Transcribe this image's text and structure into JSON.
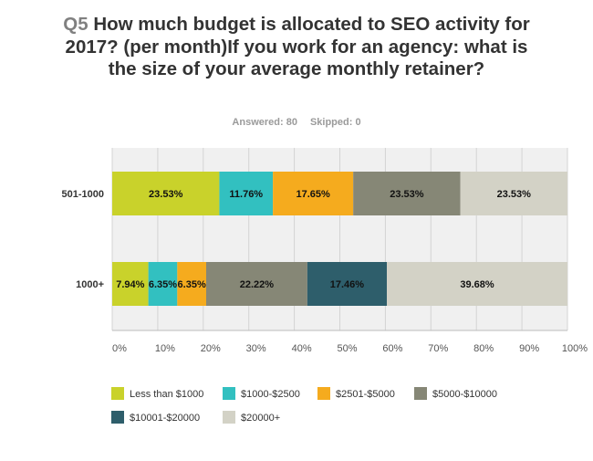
{
  "header": {
    "question_number": "Q5",
    "question_text": "How much budget is allocated to SEO activity for 2017? (per month)If you work for an agency: what is the size of your average monthly retainer?",
    "answered_label": "Answered: 80",
    "skipped_label": "Skipped: 0"
  },
  "colors": {
    "less_than_1000": "#c9d22b",
    "r1000_2500": "#32c0c0",
    "r2501_5000": "#f5ab1e",
    "r5000_10000": "#868776",
    "r10001_20000": "#2e5e6b",
    "r20000_plus": "#d3d2c6",
    "grid": "#d4d4d4",
    "plot_bg": "#f0f0f0",
    "label_text": "#111111"
  },
  "chart_data": {
    "type": "bar",
    "orientation": "horizontal",
    "stacked": true,
    "title": "How much budget is allocated to SEO activity for 2017? (per month)If you work for an agency: what is the size of your average monthly retainer?",
    "categories": [
      "501-1000",
      "1000+"
    ],
    "xlim": [
      0,
      100
    ],
    "x_ticks": [
      "0%",
      "10%",
      "20%",
      "30%",
      "40%",
      "50%",
      "60%",
      "70%",
      "80%",
      "90%",
      "100%"
    ],
    "grid": true,
    "legend_position": "bottom",
    "series": [
      {
        "name": "Less than $1000",
        "color_key": "less_than_1000",
        "values": [
          23.53,
          7.94
        ],
        "labels": [
          "23.53%",
          "7.94%"
        ]
      },
      {
        "name": "$1000-$2500",
        "color_key": "r1000_2500",
        "values": [
          11.76,
          6.35
        ],
        "labels": [
          "11.76%",
          "6.35%"
        ]
      },
      {
        "name": "$2501-$5000",
        "color_key": "r2501_5000",
        "values": [
          17.65,
          6.35
        ],
        "labels": [
          "17.65%",
          "6.35%"
        ]
      },
      {
        "name": "$5000-$10000",
        "color_key": "r5000_10000",
        "values": [
          23.53,
          22.22
        ],
        "labels": [
          "23.53%",
          "22.22%"
        ]
      },
      {
        "name": "$10001-$20000",
        "color_key": "r10001_20000",
        "values": [
          0,
          17.46
        ],
        "labels": [
          "",
          "17.46%"
        ]
      },
      {
        "name": "$20000+",
        "color_key": "r20000_plus",
        "values": [
          23.53,
          39.68
        ],
        "labels": [
          "23.53%",
          "39.68%"
        ]
      }
    ]
  }
}
